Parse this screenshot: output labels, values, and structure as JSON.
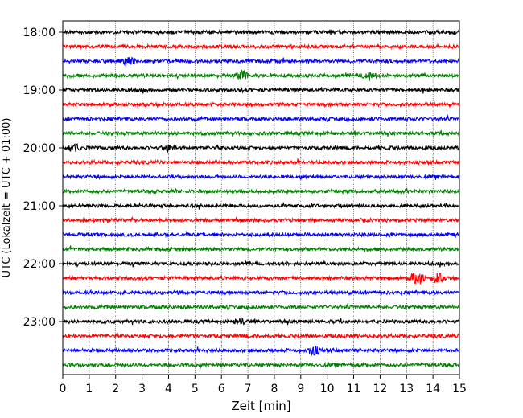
{
  "chart_data": {
    "type": "line",
    "title": "",
    "xlabel": "Zeit  [min]",
    "ylabel": "UTC (Lokalzeit = UTC + 01:00)",
    "xlim": [
      0,
      15
    ],
    "x_ticks": [
      "0",
      "1",
      "2",
      "3",
      "4",
      "5",
      "6",
      "7",
      "8",
      "9",
      "10",
      "11",
      "12",
      "13",
      "14",
      "15"
    ],
    "y_ticks": [
      "18:00",
      "19:00",
      "20:00",
      "21:00",
      "22:00",
      "23:00"
    ],
    "grid": "vertical dotted",
    "trace_interval_min": 15,
    "trace_colors": [
      "#000000",
      "#ff0000",
      "#0000ff",
      "#008000"
    ],
    "series": [
      {
        "start": "18:00",
        "color": "#000000"
      },
      {
        "start": "18:15",
        "color": "#ff0000"
      },
      {
        "start": "18:30",
        "color": "#0000ff"
      },
      {
        "start": "18:45",
        "color": "#008000"
      },
      {
        "start": "19:00",
        "color": "#000000"
      },
      {
        "start": "19:15",
        "color": "#ff0000"
      },
      {
        "start": "19:30",
        "color": "#0000ff"
      },
      {
        "start": "19:45",
        "color": "#008000"
      },
      {
        "start": "20:00",
        "color": "#000000"
      },
      {
        "start": "20:15",
        "color": "#ff0000"
      },
      {
        "start": "20:30",
        "color": "#0000ff"
      },
      {
        "start": "20:45",
        "color": "#008000"
      },
      {
        "start": "21:00",
        "color": "#000000"
      },
      {
        "start": "21:15",
        "color": "#ff0000"
      },
      {
        "start": "21:30",
        "color": "#0000ff"
      },
      {
        "start": "21:45",
        "color": "#008000"
      },
      {
        "start": "22:00",
        "color": "#000000"
      },
      {
        "start": "22:15",
        "color": "#ff0000"
      },
      {
        "start": "22:30",
        "color": "#0000ff"
      },
      {
        "start": "22:45",
        "color": "#008000"
      },
      {
        "start": "23:00",
        "color": "#000000"
      },
      {
        "start": "23:15",
        "color": "#ff0000"
      },
      {
        "start": "23:30",
        "color": "#0000ff"
      },
      {
        "start": "23:45",
        "color": "#008000"
      }
    ],
    "events": [
      {
        "start": "18:30",
        "minute": 2.5,
        "amplitude": "medium"
      },
      {
        "start": "18:45",
        "minute": 6.8,
        "amplitude": "medium"
      },
      {
        "start": "18:45",
        "minute": 11.6,
        "amplitude": "medium"
      },
      {
        "start": "20:00",
        "minute": 0.4,
        "amplitude": "medium"
      },
      {
        "start": "20:00",
        "minute": 4.0,
        "amplitude": "small"
      },
      {
        "start": "22:15",
        "minute": 13.4,
        "amplitude": "large"
      },
      {
        "start": "22:15",
        "minute": 14.2,
        "amplitude": "medium"
      },
      {
        "start": "23:00",
        "minute": 6.7,
        "amplitude": "small"
      },
      {
        "start": "23:30",
        "minute": 9.5,
        "amplitude": "medium"
      }
    ]
  }
}
